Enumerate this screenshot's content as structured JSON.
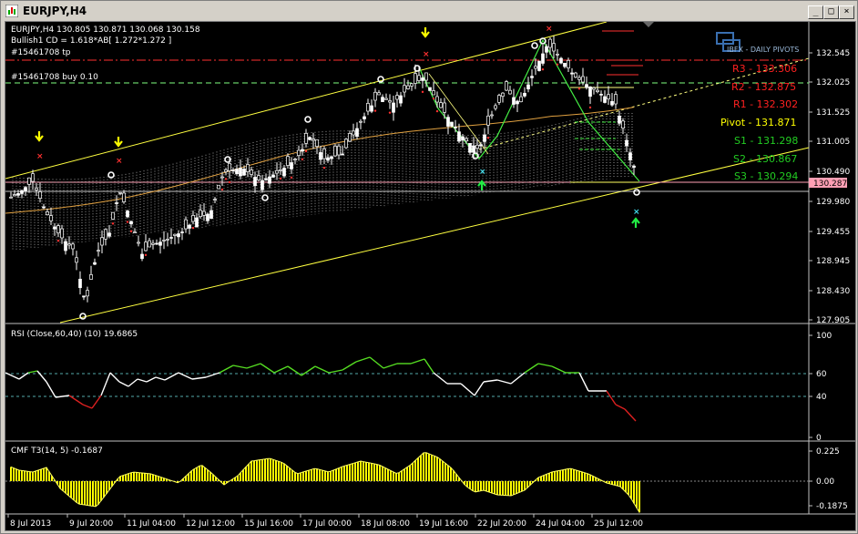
{
  "window": {
    "title": "EURJPY,H4"
  },
  "main_chart": {
    "symbol_header": "EURJPY,H4  130.805 130.871 130.068 130.158",
    "indicator_line": "Bullish1 CD = 1.618*AB[ 1.272*1.272 ]",
    "order_tp": "#15461708 tp",
    "order_buy": "#15461708 buy 0.10",
    "brand_label": "IBFX - DAILY PIVOTS",
    "current_price": "130.287",
    "price_ticks": [
      "132.545",
      "132.025",
      "131.525",
      "131.005",
      "130.490",
      "129.980",
      "129.455",
      "128.945",
      "128.430",
      "127.905"
    ],
    "pivots": [
      {
        "label": "R3 - 133.306",
        "color": "#ff2020"
      },
      {
        "label": "R2 - 132.875",
        "color": "#ff2020"
      },
      {
        "label": "R1 - 132.302",
        "color": "#ff2020"
      },
      {
        "label": "Pivot - 131.871",
        "color": "#ffff00"
      },
      {
        "label": "S1 - 131.298",
        "color": "#22cc22"
      },
      {
        "label": "S2 - 130.867",
        "color": "#22cc22"
      },
      {
        "label": "S3 - 130.294",
        "color": "#22cc22"
      }
    ]
  },
  "rsi_panel": {
    "header": "RSI (Close,60,40) (10) 19.6865",
    "levels": [
      "100",
      "60",
      "40",
      "0"
    ]
  },
  "cmf_panel": {
    "header": "CMF T3(14, 5) -0.1687",
    "levels": [
      "0.225",
      "0.00",
      "-0.1875"
    ]
  },
  "time_axis": [
    "8 Jul 2013",
    "9 Jul 20:00",
    "11 Jul 04:00",
    "12 Jul 12:00",
    "15 Jul 16:00",
    "17 Jul 00:00",
    "18 Jul 08:00",
    "19 Jul 16:00",
    "22 Jul 20:00",
    "24 Jul 04:00",
    "25 Jul 12:00"
  ]
}
